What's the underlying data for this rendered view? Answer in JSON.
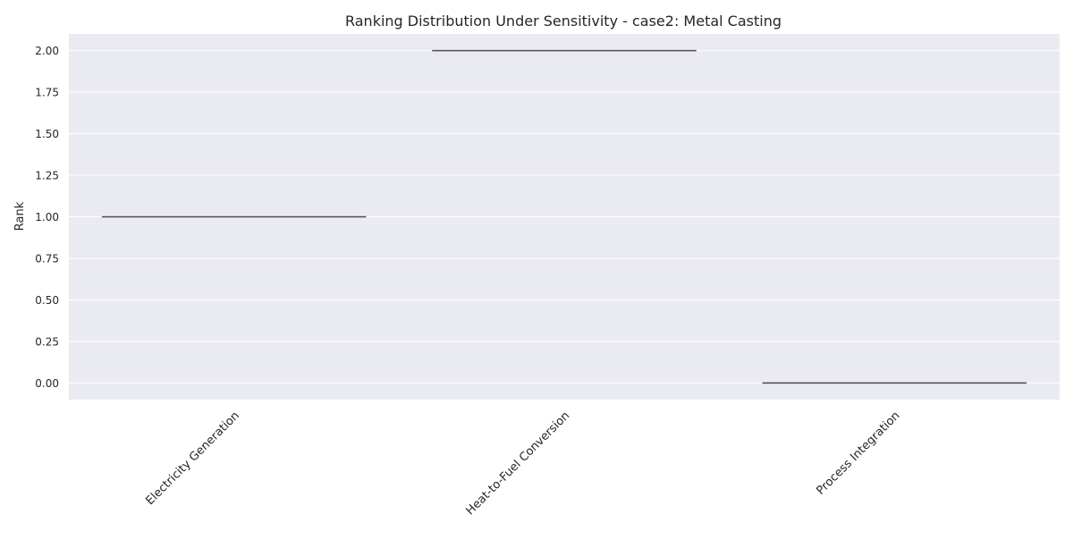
{
  "chart_data": {
    "type": "box",
    "title": "Ranking Distribution Under Sensitivity - case2: Metal Casting",
    "xlabel": "",
    "ylabel": "Rank",
    "categories": [
      "Electricity Generation",
      "Heat-to-Fuel Conversion",
      "Process Integration"
    ],
    "values": [
      1,
      2,
      0
    ],
    "ylim": [
      -0.1,
      2.1
    ],
    "yticks": [
      0.0,
      0.25,
      0.5,
      0.75,
      1.0,
      1.25,
      1.5,
      1.75,
      2.0
    ],
    "ytick_labels": [
      "0.00",
      "0.25",
      "0.50",
      "0.75",
      "1.00",
      "1.25",
      "1.50",
      "1.75",
      "2.00"
    ],
    "grid": true,
    "colors": {
      "plot_background": "#eaeaf2",
      "grid": "#ffffff",
      "median_line": "#4d4d4d",
      "text": "#262626"
    }
  }
}
